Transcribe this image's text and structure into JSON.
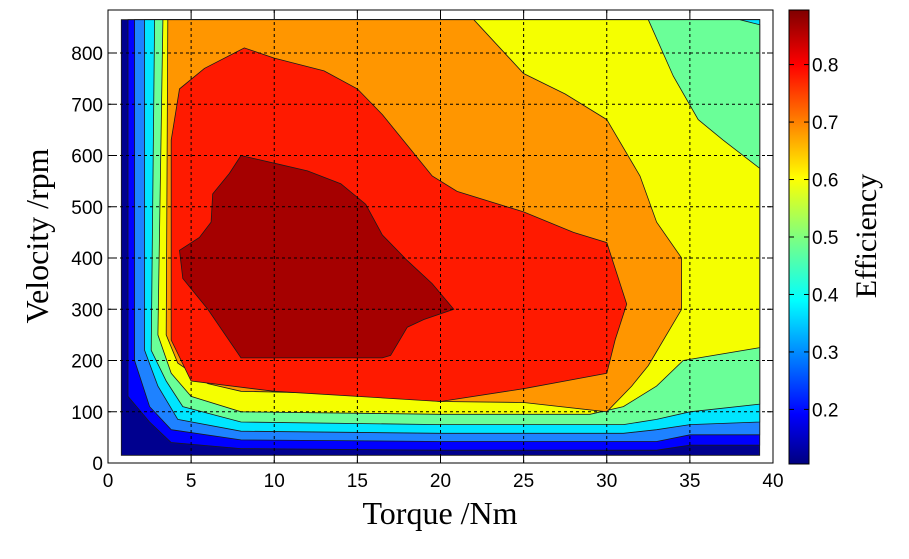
{
  "chart_data": {
    "type": "contourf",
    "title": "",
    "xlabel": "Torque /Nm",
    "ylabel": "Velocity /rpm",
    "colorbar_label": "Efficiency",
    "xlim": [
      0,
      40
    ],
    "ylim": [
      0,
      870
    ],
    "xticks": [
      0,
      5,
      10,
      15,
      20,
      25,
      30,
      35,
      40
    ],
    "yticks": [
      0,
      100,
      200,
      300,
      400,
      500,
      600,
      700,
      800
    ],
    "colorbar_range": [
      0.105,
      0.895
    ],
    "colorbar_ticks": [
      0.2,
      0.3,
      0.4,
      0.5,
      0.6,
      0.7,
      0.8
    ],
    "grid": true,
    "data_extent": {
      "torque": [
        0.8,
        39.2
      ],
      "velocity": [
        15,
        865
      ]
    },
    "levels": [
      {
        "min_efficiency": 0.1,
        "color": "#00008f",
        "polygon": [
          [
            0.8,
            15
          ],
          [
            39.2,
            15
          ],
          [
            39.2,
            865
          ],
          [
            0.8,
            865
          ]
        ]
      },
      {
        "min_efficiency": 0.2,
        "color": "#0000ff",
        "polygon": [
          [
            1.2,
            865
          ],
          [
            1.2,
            130
          ],
          [
            2.5,
            80
          ],
          [
            3.8,
            40
          ],
          [
            8,
            28
          ],
          [
            20,
            25
          ],
          [
            33,
            25
          ],
          [
            35,
            35
          ],
          [
            39.2,
            35
          ],
          [
            39.2,
            865
          ]
        ]
      },
      {
        "min_efficiency": 0.3,
        "color": "#1e82ff",
        "polygon": [
          [
            1.6,
            865
          ],
          [
            1.6,
            200
          ],
          [
            2.5,
            110
          ],
          [
            3.8,
            65
          ],
          [
            8,
            45
          ],
          [
            20,
            42
          ],
          [
            33,
            42
          ],
          [
            35,
            55
          ],
          [
            39.2,
            55
          ],
          [
            39.2,
            865
          ]
        ]
      },
      {
        "min_efficiency": 0.4,
        "color": "#00e5ff",
        "polygon": [
          [
            2.2,
            865
          ],
          [
            2.2,
            220
          ],
          [
            3.0,
            150
          ],
          [
            4.2,
            85
          ],
          [
            8,
            62
          ],
          [
            20,
            58
          ],
          [
            31,
            58
          ],
          [
            33,
            65
          ],
          [
            35,
            75
          ],
          [
            39.2,
            80
          ],
          [
            39.2,
            865
          ],
          [
            38,
            865
          ]
        ]
      },
      {
        "min_efficiency": 0.5,
        "color": "#6aff98",
        "polygon": [
          [
            2.8,
            865
          ],
          [
            2.6,
            220
          ],
          [
            3.5,
            160
          ],
          [
            4.5,
            110
          ],
          [
            8,
            80
          ],
          [
            20,
            75
          ],
          [
            31,
            75
          ],
          [
            33,
            85
          ],
          [
            35,
            100
          ],
          [
            39.2,
            115
          ],
          [
            39.2,
            855
          ],
          [
            38,
            865
          ]
        ]
      },
      {
        "min_efficiency": 0.6,
        "color": "#f5ff00",
        "polygon": [
          [
            3.3,
            865
          ],
          [
            3.0,
            250
          ],
          [
            3.8,
            175
          ],
          [
            5,
            130
          ],
          [
            8,
            100
          ],
          [
            20,
            95
          ],
          [
            29,
            95
          ],
          [
            31,
            110
          ],
          [
            33,
            150
          ],
          [
            34.6,
            200
          ],
          [
            39.2,
            225
          ],
          [
            39.2,
            575
          ],
          [
            37,
            630
          ],
          [
            35.5,
            670
          ],
          [
            34,
            755
          ],
          [
            32.5,
            865
          ]
        ]
      },
      {
        "min_efficiency": 0.7,
        "color": "#ff9600",
        "polygon": [
          [
            3.6,
            865
          ],
          [
            3.5,
            250
          ],
          [
            4.2,
            195
          ],
          [
            6,
            155
          ],
          [
            8,
            140
          ],
          [
            15,
            135
          ],
          [
            20,
            120
          ],
          [
            25,
            118
          ],
          [
            30,
            100
          ],
          [
            31.5,
            150
          ],
          [
            32.5,
            190
          ],
          [
            34.5,
            300
          ],
          [
            34.5,
            400
          ],
          [
            33,
            470
          ],
          [
            32,
            560
          ],
          [
            30,
            670
          ],
          [
            27.5,
            720
          ],
          [
            25,
            760
          ],
          [
            22,
            865
          ]
        ]
      },
      {
        "min_efficiency": 0.8,
        "color": "#ff1a00",
        "polygon": [
          [
            3.8,
            630
          ],
          [
            4.3,
            730
          ],
          [
            5.8,
            770
          ],
          [
            8.2,
            810
          ],
          [
            10,
            790
          ],
          [
            13,
            765
          ],
          [
            15,
            730
          ],
          [
            16.5,
            680
          ],
          [
            18,
            620
          ],
          [
            19.5,
            560
          ],
          [
            21,
            530
          ],
          [
            25,
            490
          ],
          [
            28,
            450
          ],
          [
            30,
            430
          ],
          [
            31.2,
            310
          ],
          [
            30.5,
            240
          ],
          [
            30,
            175
          ],
          [
            25,
            145
          ],
          [
            20,
            120
          ],
          [
            15,
            130
          ],
          [
            10,
            140
          ],
          [
            5,
            160
          ],
          [
            3.8,
            240
          ]
        ]
      },
      {
        "min_efficiency": 0.85,
        "color": "#a50000",
        "polygon": [
          [
            8,
            600
          ],
          [
            10,
            585
          ],
          [
            12,
            570
          ],
          [
            14,
            545
          ],
          [
            15.5,
            505
          ],
          [
            16.5,
            445
          ],
          [
            18,
            395
          ],
          [
            19.5,
            350
          ],
          [
            20.8,
            300
          ],
          [
            19,
            280
          ],
          [
            18,
            265
          ],
          [
            17,
            210
          ],
          [
            16.5,
            205
          ],
          [
            8,
            205
          ],
          [
            6,
            300
          ],
          [
            4.5,
            360
          ],
          [
            4.3,
            415
          ],
          [
            5.5,
            440
          ],
          [
            6.2,
            470
          ],
          [
            6.3,
            525
          ],
          [
            7.3,
            565
          ]
        ]
      }
    ]
  }
}
